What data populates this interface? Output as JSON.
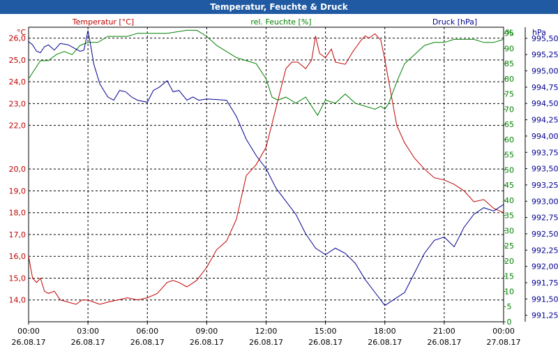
{
  "window": {
    "title": "Temperatur, Feuchte & Druck"
  },
  "chart_data": {
    "type": "line",
    "title": "Temperatur, Feuchte & Druck",
    "x": {
      "range_hours": [
        0,
        24
      ],
      "ticks": [
        {
          "time": "00:00",
          "date": "26.08.17"
        },
        {
          "time": "03:00",
          "date": "26.08.17"
        },
        {
          "time": "06:00",
          "date": "26.08.17"
        },
        {
          "time": "09:00",
          "date": "26.08.17"
        },
        {
          "time": "12:00",
          "date": "26.08.17"
        },
        {
          "time": "15:00",
          "date": "26.08.17"
        },
        {
          "time": "18:00",
          "date": "26.08.17"
        },
        {
          "time": "21:00",
          "date": "26.08.17"
        },
        {
          "time": "00:00",
          "date": "27.08.17"
        }
      ]
    },
    "axes": {
      "temperature": {
        "unit": "°C",
        "range": [
          13.0,
          26.5
        ],
        "color": "#c00000",
        "ticks": [
          "14,0",
          "15,0",
          "16,0",
          "17,0",
          "18,0",
          "19,0",
          "20,0",
          "22,0",
          "23,0",
          "24,0",
          "25,0",
          "26,0"
        ]
      },
      "humidity": {
        "unit": "%",
        "range": [
          0,
          97
        ],
        "color": "#008000",
        "ticks": [
          "0",
          "5",
          "10",
          "15",
          "20",
          "25",
          "30",
          "35",
          "40",
          "45",
          "50",
          "55",
          "60",
          "65",
          "70",
          "75",
          "80",
          "85",
          "90",
          "95"
        ]
      },
      "pressure": {
        "unit": "hPa",
        "range": [
          991.15,
          995.67
        ],
        "color": "#000090",
        "ticks": [
          "991,25",
          "991,50",
          "991,75",
          "992,00",
          "992,25",
          "992,50",
          "992,75",
          "993,00",
          "993,25",
          "993,50",
          "993,75",
          "994,00",
          "994,25",
          "994,50",
          "994,75",
          "995,00",
          "995,25",
          "995,50"
        ]
      }
    },
    "series": [
      {
        "name": "Temperatur [°C]",
        "axis": "temperature",
        "color": "#c00000",
        "x": [
          0,
          0.2,
          0.4,
          0.6,
          0.8,
          1,
          1.3,
          1.6,
          2,
          2.4,
          2.7,
          3,
          3.3,
          3.6,
          4,
          4.5,
          5,
          5.5,
          6,
          6.5,
          7,
          7.3,
          7.6,
          8,
          8.5,
          9,
          9.5,
          10,
          10.5,
          11,
          11.5,
          12,
          12.5,
          13,
          13.3,
          13.6,
          14,
          14.3,
          14.5,
          14.7,
          15,
          15.3,
          15.5,
          16,
          16.4,
          16.8,
          17,
          17.2,
          17.5,
          17.8,
          18,
          18.3,
          18.6,
          19,
          19.5,
          20,
          20.5,
          21,
          21.5,
          22,
          22.5,
          23,
          23.5,
          24
        ],
        "values": [
          16.0,
          15.0,
          14.8,
          15.0,
          14.4,
          14.3,
          14.4,
          14.0,
          13.9,
          13.8,
          14.0,
          14.0,
          13.9,
          13.8,
          13.9,
          14.0,
          14.1,
          14.0,
          14.1,
          14.3,
          14.8,
          14.9,
          14.8,
          14.6,
          14.9,
          15.5,
          16.3,
          16.7,
          17.7,
          19.7,
          20.2,
          21.0,
          22.8,
          24.6,
          24.9,
          24.9,
          24.6,
          25.0,
          26.1,
          25.3,
          25.1,
          25.5,
          24.9,
          24.8,
          25.4,
          25.9,
          26.1,
          26.0,
          26.2,
          25.9,
          25.0,
          23.5,
          22.0,
          21.2,
          20.5,
          20.0,
          19.6,
          19.5,
          19.3,
          19.0,
          18.5,
          18.6,
          18.2,
          18.0
        ]
      },
      {
        "name": "rel. Feuchte [%]",
        "axis": "humidity",
        "color": "#008000",
        "x": [
          0,
          0.3,
          0.6,
          1,
          1.4,
          1.8,
          2.2,
          2.6,
          3,
          3.5,
          4,
          4.5,
          5,
          5.5,
          6,
          7,
          8,
          8.5,
          9,
          9.5,
          10,
          10.5,
          11,
          11.5,
          12,
          12.3,
          12.6,
          13,
          13.5,
          14,
          14.3,
          14.6,
          15,
          15.5,
          16,
          16.5,
          17,
          17.5,
          17.8,
          18,
          18.2,
          18.6,
          19,
          19.5,
          20,
          20.5,
          21,
          21.5,
          22,
          22.5,
          23,
          23.5,
          24
        ],
        "values": [
          80,
          83,
          86,
          86,
          88,
          89,
          88,
          91,
          92,
          92,
          94,
          94,
          94,
          95,
          95,
          95,
          96,
          96,
          94,
          91,
          89,
          87,
          86,
          85,
          80,
          74,
          73,
          74,
          72,
          74,
          71,
          68,
          73,
          72,
          75,
          72,
          71,
          70,
          71,
          70,
          72,
          79,
          85,
          88,
          91,
          92,
          92,
          93,
          93,
          93,
          92,
          92,
          93
        ]
      },
      {
        "name": "Druck [hPa]",
        "axis": "pressure",
        "color": "#000090",
        "x": [
          0,
          0.2,
          0.4,
          0.6,
          0.8,
          1,
          1.3,
          1.6,
          2,
          2.3,
          2.6,
          2.8,
          3,
          3.1,
          3.3,
          3.6,
          4,
          4.3,
          4.6,
          4.9,
          5.2,
          5.5,
          6,
          6.3,
          6.6,
          7,
          7.3,
          7.6,
          8,
          8.3,
          8.6,
          9,
          9.5,
          10,
          10.5,
          11,
          11.5,
          12,
          12.5,
          13,
          13.5,
          14,
          14.5,
          15,
          15.5,
          16,
          16.5,
          17,
          17.5,
          18,
          18.5,
          19,
          19.5,
          20,
          20.5,
          21,
          21.5,
          22,
          22.5,
          23,
          23.5,
          24
        ],
        "values": [
          995.45,
          995.4,
          995.3,
          995.28,
          995.37,
          995.4,
          995.32,
          995.42,
          995.4,
          995.35,
          995.3,
          995.32,
          995.62,
          995.45,
          995.1,
          994.8,
          994.6,
          994.55,
          994.7,
          994.68,
          994.6,
          994.55,
          994.52,
          994.7,
          994.75,
          994.85,
          994.68,
          994.7,
          994.55,
          994.6,
          994.55,
          994.57,
          994.56,
          994.55,
          994.3,
          993.95,
          993.7,
          993.5,
          993.2,
          993.0,
          992.8,
          992.5,
          992.28,
          992.18,
          992.28,
          992.2,
          992.05,
          991.8,
          991.6,
          991.4,
          991.5,
          991.6,
          991.9,
          992.2,
          992.4,
          992.45,
          992.3,
          992.6,
          992.8,
          992.9,
          992.85,
          992.95
        ]
      }
    ]
  }
}
